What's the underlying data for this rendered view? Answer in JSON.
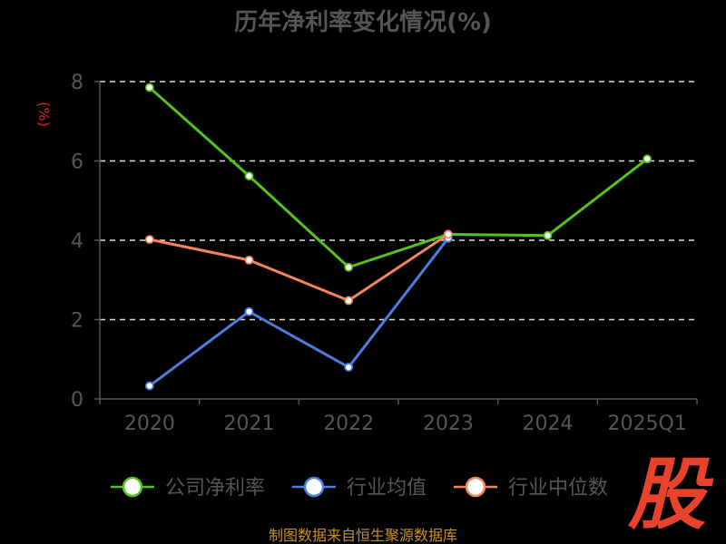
{
  "chart_data": {
    "type": "line",
    "title": "历年净利率变化情况(%)",
    "ylabel": "(%)",
    "xlabel": "",
    "categories": [
      "2020",
      "2021",
      "2022",
      "2023",
      "2024",
      "2025Q1"
    ],
    "ylim": [
      0,
      8
    ],
    "yticks": [
      0,
      2,
      4,
      6,
      8
    ],
    "grid": true,
    "grid_style": "dashed",
    "legend_position": "bottom",
    "series": [
      {
        "name": "公司净利率",
        "color": "#52c41a",
        "values": [
          7.85,
          5.62,
          3.32,
          4.15,
          4.12,
          6.05
        ]
      },
      {
        "name": "行业均值",
        "color": "#4a7fe0",
        "values": [
          0.33,
          2.2,
          0.8,
          4.05,
          null,
          null
        ]
      },
      {
        "name": "行业中位数",
        "color": "#f5855b",
        "values": [
          4.02,
          3.5,
          2.48,
          4.15,
          null,
          null
        ]
      }
    ]
  },
  "source_note": "制图数据来自恒生聚源数据库",
  "watermark": "股"
}
